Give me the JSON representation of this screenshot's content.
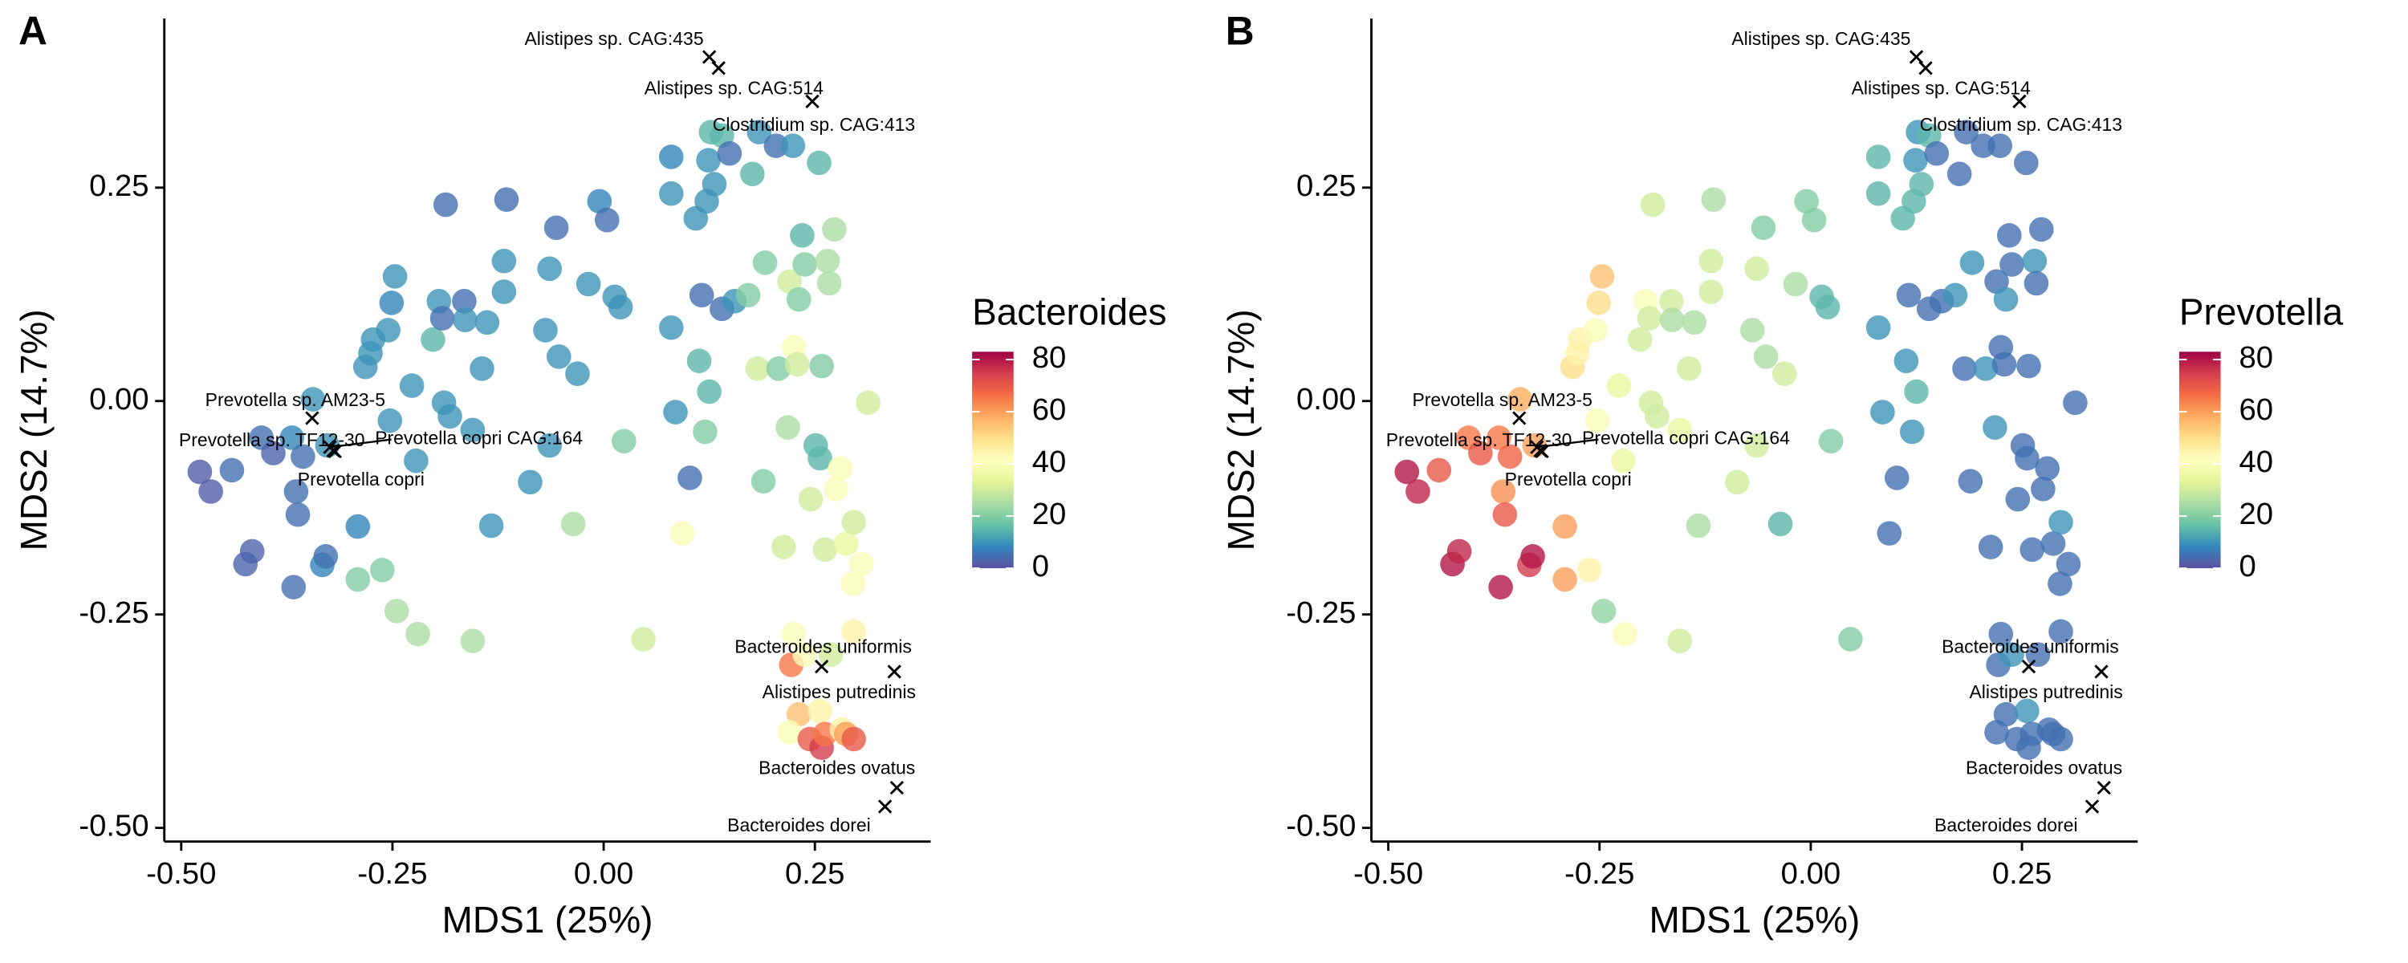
{
  "chart_data": [
    {
      "type": "scatter",
      "panel_label": "A",
      "x_label": "MDS1 (25%)",
      "y_label": "MDS2 (14.7%)",
      "color_title": "Bacteroides",
      "xlim": [
        -0.52,
        0.387
      ],
      "ylim": [
        -0.516,
        0.448
      ],
      "xticks": [
        {
          "value": -0.5,
          "label": "-0.50"
        },
        {
          "value": -0.25,
          "label": "-0.25"
        },
        {
          "value": 0,
          "label": "0.00"
        },
        {
          "value": 0.25,
          "label": "0.25"
        }
      ],
      "yticks": [
        {
          "value": 0.25,
          "label": "0.25"
        },
        {
          "value": 0,
          "label": "0.00"
        },
        {
          "value": -0.25,
          "label": "-0.25"
        },
        {
          "value": -0.5,
          "label": "-0.50"
        }
      ],
      "clim": [
        0,
        83
      ],
      "cticks": [
        0,
        20,
        40,
        60,
        80
      ],
      "colormap": [
        "#5e4fa2",
        "#3288bd",
        "#66c2a5",
        "#abdda4",
        "#e6f598",
        "#ffffbf",
        "#fee08b",
        "#fdae61",
        "#f46d43",
        "#d53e4f",
        "#9e0142"
      ],
      "x": [
        -0.478,
        -0.465,
        -0.44,
        -0.424,
        -0.416,
        -0.405,
        -0.391,
        -0.367,
        -0.364,
        -0.362,
        -0.369,
        -0.344,
        -0.356,
        -0.327,
        -0.333,
        -0.329,
        -0.291,
        -0.291,
        -0.262,
        -0.282,
        -0.276,
        -0.273,
        -0.251,
        -0.247,
        -0.255,
        -0.253,
        -0.227,
        -0.245,
        -0.222,
        -0.22,
        -0.189,
        -0.182,
        -0.202,
        -0.195,
        -0.191,
        -0.187,
        -0.165,
        -0.164,
        -0.155,
        -0.155,
        -0.144,
        -0.138,
        -0.133,
        -0.118,
        -0.118,
        -0.115,
        -0.087,
        -0.069,
        -0.064,
        -0.056,
        -0.064,
        -0.053,
        -0.036,
        -0.031,
        -0.018,
        -0.005,
        0.004,
        0.013,
        0.02,
        0.024,
        0.047,
        0.08,
        0.08,
        0.08,
        0.085,
        0.093,
        0.102,
        0.109,
        0.113,
        0.116,
        0.12,
        0.122,
        0.124,
        0.125,
        0.127,
        0.131,
        0.14,
        0.14,
        0.149,
        0.155,
        0.171,
        0.176,
        0.184,
        0.182,
        0.189,
        0.191,
        0.204,
        0.207,
        0.213,
        0.218,
        0.22,
        0.224,
        0.225,
        0.229,
        0.231,
        0.235,
        0.238,
        0.245,
        0.251,
        0.255,
        0.256,
        0.258,
        0.262,
        0.265,
        0.267,
        0.273,
        0.275,
        0.28,
        0.287,
        0.296,
        0.313,
        0.295,
        0.305,
        0.296,
        0.225,
        0.222,
        0.238,
        0.269,
        0.231,
        0.256,
        0.22,
        0.244,
        0.258,
        0.262,
        0.282,
        0.287,
        0.296
      ],
      "y": [
        -0.083,
        -0.106,
        -0.081,
        -0.191,
        -0.176,
        -0.043,
        -0.061,
        -0.218,
        -0.106,
        -0.133,
        -0.043,
        0.002,
        -0.065,
        -0.052,
        -0.192,
        -0.182,
        -0.147,
        -0.209,
        -0.198,
        0.04,
        0.056,
        0.072,
        0.115,
        0.146,
        0.083,
        -0.023,
        0.018,
        -0.246,
        -0.07,
        -0.273,
        -0.002,
        -0.018,
        0.072,
        0.117,
        0.097,
        0.23,
        0.117,
        0.095,
        -0.034,
        -0.281,
        0.038,
        0.092,
        -0.146,
        0.128,
        0.164,
        0.236,
        -0.095,
        0.083,
        0.155,
        0.203,
        -0.052,
        0.052,
        -0.144,
        0.032,
        0.137,
        0.234,
        0.212,
        0.122,
        0.11,
        -0.047,
        -0.279,
        0.286,
        0.243,
        0.086,
        -0.013,
        -0.155,
        -0.09,
        0.214,
        0.047,
        0.124,
        -0.036,
        0.234,
        0.282,
        0.011,
        0.315,
        0.254,
        0.311,
        0.108,
        0.29,
        0.117,
        0.124,
        0.266,
        0.315,
        0.038,
        -0.094,
        0.162,
        0.299,
        0.038,
        -0.171,
        -0.031,
        0.14,
        0.299,
        0.063,
        0.043,
        0.119,
        0.194,
        0.16,
        -0.115,
        -0.052,
        0.279,
        -0.067,
        0.041,
        -0.174,
        0.164,
        0.138,
        0.201,
        -0.103,
        -0.079,
        -0.167,
        -0.142,
        -0.002,
        -0.214,
        -0.191,
        -0.27,
        -0.273,
        -0.309,
        -0.297,
        -0.297,
        -0.367,
        -0.363,
        -0.388,
        -0.396,
        -0.406,
        -0.39,
        -0.385,
        -0.39,
        -0.396
      ],
      "values": [
        2,
        2,
        5,
        3,
        3,
        5,
        3,
        5,
        5,
        5,
        8,
        10,
        5,
        10,
        8,
        5,
        8,
        20,
        20,
        10,
        10,
        10,
        8,
        10,
        10,
        10,
        10,
        25,
        10,
        25,
        10,
        10,
        15,
        10,
        5,
        5,
        5,
        10,
        10,
        25,
        10,
        10,
        10,
        10,
        10,
        5,
        10,
        10,
        10,
        5,
        10,
        10,
        25,
        10,
        10,
        8,
        5,
        10,
        10,
        20,
        30,
        8,
        10,
        10,
        10,
        40,
        5,
        10,
        15,
        5,
        20,
        10,
        10,
        15,
        15,
        10,
        15,
        5,
        5,
        10,
        20,
        15,
        10,
        30,
        20,
        20,
        5,
        20,
        30,
        25,
        30,
        10,
        40,
        30,
        20,
        15,
        20,
        30,
        15,
        15,
        15,
        20,
        30,
        25,
        25,
        25,
        40,
        40,
        35,
        30,
        30,
        40,
        40,
        45,
        40,
        65,
        40,
        30,
        55,
        45,
        40,
        70,
        75,
        65,
        45,
        60,
        70
      ],
      "markers": [
        {
          "label": "Alistipes sp. CAG:435",
          "x": 0.125,
          "y": 0.403
        },
        {
          "label": "Alistipes sp. CAG:514",
          "x": 0.136,
          "y": 0.39
        },
        {
          "label": "Clostridium sp. CAG:413",
          "x": 0.247,
          "y": 0.351
        },
        {
          "label": "Prevotella sp. AM23-5",
          "x": -0.345,
          "y": -0.02
        },
        {
          "label": "Prevotella sp. TF12-30",
          "x": -0.32,
          "y": -0.058
        },
        {
          "label": "Prevotella copri CAG:164",
          "x": -0.324,
          "y": -0.054
        },
        {
          "label": "Prevotella copri",
          "x": -0.318,
          "y": -0.059
        },
        {
          "label": "Bacteroides uniformis",
          "x": 0.258,
          "y": -0.311
        },
        {
          "label": "Alistipes putredinis",
          "x": 0.344,
          "y": -0.317
        },
        {
          "label": "Bacteroides ovatus",
          "x": 0.347,
          "y": -0.453
        },
        {
          "label": "Bacteroides dorei",
          "x": 0.333,
          "y": -0.475
        }
      ]
    },
    {
      "type": "scatter",
      "panel_label": "B",
      "x_label": "MDS1 (25%)",
      "y_label": "MDS2 (14.7%)",
      "color_title": "Prevotella",
      "xlim": [
        -0.52,
        0.387
      ],
      "ylim": [
        -0.516,
        0.448
      ],
      "xticks": [
        {
          "value": -0.5,
          "label": "-0.50"
        },
        {
          "value": -0.25,
          "label": "-0.25"
        },
        {
          "value": 0,
          "label": "0.00"
        },
        {
          "value": 0.25,
          "label": "0.25"
        }
      ],
      "yticks": [
        {
          "value": 0.25,
          "label": "0.25"
        },
        {
          "value": 0,
          "label": "0.00"
        },
        {
          "value": -0.25,
          "label": "-0.25"
        },
        {
          "value": -0.5,
          "label": "-0.50"
        }
      ],
      "clim": [
        0,
        83
      ],
      "cticks": [
        0,
        20,
        40,
        60,
        80
      ],
      "colormap": [
        "#5e4fa2",
        "#3288bd",
        "#66c2a5",
        "#abdda4",
        "#e6f598",
        "#ffffbf",
        "#fee08b",
        "#fdae61",
        "#f46d43",
        "#d53e4f",
        "#9e0142"
      ],
      "x": [
        -0.478,
        -0.465,
        -0.44,
        -0.424,
        -0.416,
        -0.405,
        -0.391,
        -0.367,
        -0.364,
        -0.362,
        -0.369,
        -0.344,
        -0.356,
        -0.327,
        -0.333,
        -0.329,
        -0.291,
        -0.291,
        -0.262,
        -0.282,
        -0.276,
        -0.273,
        -0.251,
        -0.247,
        -0.255,
        -0.253,
        -0.227,
        -0.245,
        -0.222,
        -0.22,
        -0.189,
        -0.182,
        -0.202,
        -0.195,
        -0.191,
        -0.187,
        -0.165,
        -0.164,
        -0.155,
        -0.155,
        -0.144,
        -0.138,
        -0.133,
        -0.118,
        -0.118,
        -0.115,
        -0.087,
        -0.069,
        -0.064,
        -0.056,
        -0.064,
        -0.053,
        -0.036,
        -0.031,
        -0.018,
        -0.005,
        0.004,
        0.013,
        0.02,
        0.024,
        0.047,
        0.08,
        0.08,
        0.08,
        0.085,
        0.093,
        0.102,
        0.109,
        0.113,
        0.116,
        0.12,
        0.122,
        0.124,
        0.125,
        0.127,
        0.131,
        0.14,
        0.14,
        0.149,
        0.155,
        0.171,
        0.176,
        0.184,
        0.182,
        0.189,
        0.191,
        0.204,
        0.207,
        0.213,
        0.218,
        0.22,
        0.224,
        0.225,
        0.229,
        0.231,
        0.235,
        0.238,
        0.245,
        0.251,
        0.255,
        0.256,
        0.258,
        0.262,
        0.265,
        0.267,
        0.273,
        0.275,
        0.28,
        0.287,
        0.296,
        0.313,
        0.295,
        0.305,
        0.296,
        0.225,
        0.222,
        0.238,
        0.269,
        0.231,
        0.256,
        0.22,
        0.244,
        0.258,
        0.262,
        0.282,
        0.287,
        0.296
      ],
      "y": [
        -0.083,
        -0.106,
        -0.081,
        -0.191,
        -0.176,
        -0.043,
        -0.061,
        -0.218,
        -0.106,
        -0.133,
        -0.043,
        0.002,
        -0.065,
        -0.052,
        -0.192,
        -0.182,
        -0.147,
        -0.209,
        -0.198,
        0.04,
        0.056,
        0.072,
        0.115,
        0.146,
        0.083,
        -0.023,
        0.018,
        -0.246,
        -0.07,
        -0.273,
        -0.002,
        -0.018,
        0.072,
        0.117,
        0.097,
        0.23,
        0.117,
        0.095,
        -0.034,
        -0.281,
        0.038,
        0.092,
        -0.146,
        0.128,
        0.164,
        0.236,
        -0.095,
        0.083,
        0.155,
        0.203,
        -0.052,
        0.052,
        -0.144,
        0.032,
        0.137,
        0.234,
        0.212,
        0.122,
        0.11,
        -0.047,
        -0.279,
        0.286,
        0.243,
        0.086,
        -0.013,
        -0.155,
        -0.09,
        0.214,
        0.047,
        0.124,
        -0.036,
        0.234,
        0.282,
        0.011,
        0.315,
        0.254,
        0.311,
        0.108,
        0.29,
        0.117,
        0.124,
        0.266,
        0.315,
        0.038,
        -0.094,
        0.162,
        0.299,
        0.038,
        -0.171,
        -0.031,
        0.14,
        0.299,
        0.063,
        0.043,
        0.119,
        0.194,
        0.16,
        -0.115,
        -0.052,
        0.279,
        -0.067,
        0.041,
        -0.174,
        0.164,
        0.138,
        0.201,
        -0.103,
        -0.079,
        -0.167,
        -0.142,
        -0.002,
        -0.214,
        -0.191,
        -0.27,
        -0.273,
        -0.309,
        -0.297,
        -0.297,
        -0.367,
        -0.363,
        -0.388,
        -0.396,
        -0.406,
        -0.39,
        -0.385,
        -0.39,
        -0.396
      ],
      "values": [
        80,
        78,
        70,
        80,
        78,
        65,
        70,
        80,
        62,
        70,
        65,
        58,
        68,
        60,
        75,
        80,
        60,
        60,
        45,
        50,
        45,
        45,
        50,
        55,
        40,
        40,
        35,
        22,
        35,
        40,
        30,
        30,
        30,
        40,
        30,
        30,
        30,
        25,
        35,
        30,
        30,
        25,
        25,
        30,
        30,
        25,
        30,
        25,
        30,
        20,
        30,
        25,
        15,
        30,
        25,
        20,
        20,
        15,
        15,
        20,
        20,
        15,
        15,
        10,
        10,
        5,
        5,
        15,
        10,
        5,
        10,
        15,
        10,
        15,
        10,
        15,
        15,
        5,
        5,
        5,
        10,
        5,
        5,
        5,
        5,
        10,
        5,
        10,
        5,
        10,
        5,
        5,
        5,
        5,
        10,
        5,
        5,
        5,
        5,
        5,
        5,
        5,
        5,
        10,
        5,
        5,
        5,
        5,
        5,
        10,
        5,
        5,
        5,
        5,
        5,
        5,
        10,
        5,
        5,
        10,
        5,
        5,
        5,
        5,
        5,
        5,
        5
      ],
      "markers": [
        {
          "label": "Alistipes sp. CAG:435",
          "x": 0.125,
          "y": 0.403
        },
        {
          "label": "Alistipes sp. CAG:514",
          "x": 0.136,
          "y": 0.39
        },
        {
          "label": "Clostridium sp. CAG:413",
          "x": 0.247,
          "y": 0.351
        },
        {
          "label": "Prevotella sp. AM23-5",
          "x": -0.345,
          "y": -0.02
        },
        {
          "label": "Prevotella sp. TF12-30",
          "x": -0.32,
          "y": -0.058
        },
        {
          "label": "Prevotella copri CAG:164",
          "x": -0.324,
          "y": -0.054
        },
        {
          "label": "Prevotella copri",
          "x": -0.318,
          "y": -0.059
        },
        {
          "label": "Bacteroides uniformis",
          "x": 0.258,
          "y": -0.311
        },
        {
          "label": "Alistipes putredinis",
          "x": 0.344,
          "y": -0.317
        },
        {
          "label": "Bacteroides ovatus",
          "x": 0.347,
          "y": -0.453
        },
        {
          "label": "Bacteroides dorei",
          "x": 0.333,
          "y": -0.475
        }
      ]
    }
  ]
}
